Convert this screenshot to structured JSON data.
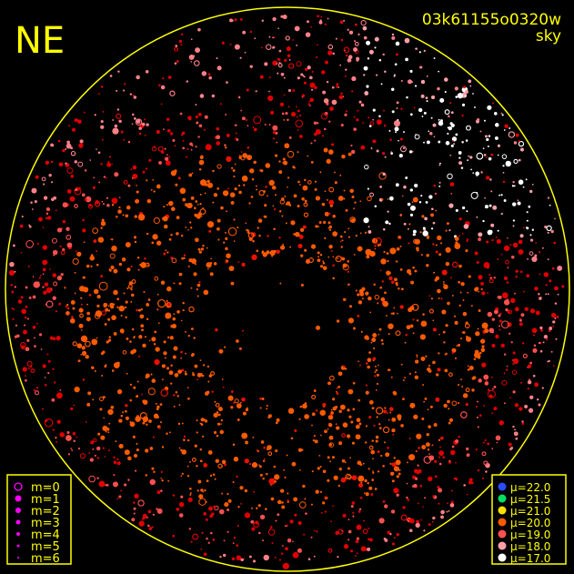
{
  "header": {
    "direction": "NE",
    "id": "03k61155o0320w",
    "mode": "sky"
  },
  "magnitude_legend": {
    "color": "#ff00ff",
    "items": [
      "m=0",
      "m=1",
      "m=2",
      "m=3",
      "m=4",
      "m=5",
      "m=6"
    ]
  },
  "mu_legend": [
    {
      "label": "μ=22.0",
      "color": "#2a4cff"
    },
    {
      "label": "μ=21.5",
      "color": "#00e060"
    },
    {
      "label": "μ=21.0",
      "color": "#ffe000"
    },
    {
      "label": "μ=20.0",
      "color": "#ff5a00"
    },
    {
      "label": "μ=19.0",
      "color": "#ff5050"
    },
    {
      "label": "μ=18.0",
      "color": "#ffa0a8"
    },
    {
      "label": "μ=17.0",
      "color": "#ffffff"
    }
  ]
}
